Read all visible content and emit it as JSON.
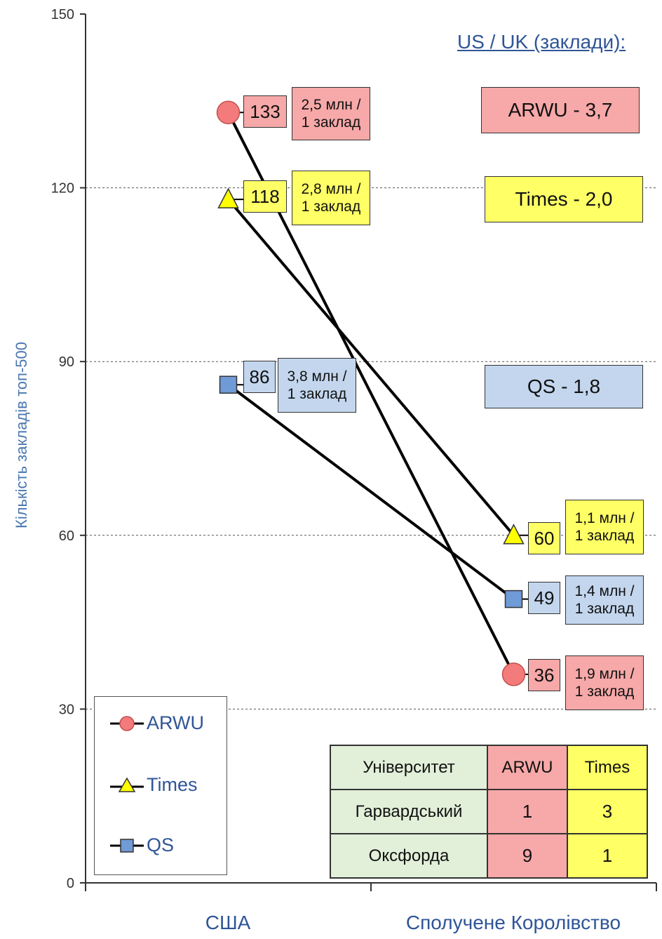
{
  "chart_data": {
    "type": "line",
    "categories": [
      "США",
      "Сполучене Королівство"
    ],
    "ylabel": "Кількість закладів топ-500",
    "ylim": [
      0,
      150
    ],
    "yticks": [
      0,
      30,
      60,
      90,
      120,
      150
    ],
    "grid": true,
    "series": [
      {
        "name": "ARWU",
        "values": [
          133,
          36
        ],
        "color": "#f47b7b",
        "marker": "circle",
        "notes": [
          "2,5 млн / 1 заклад",
          "1,9 млн / 1 заклад"
        ]
      },
      {
        "name": "Times",
        "values": [
          118,
          60
        ],
        "color": "#ffff00",
        "marker": "triangle",
        "notes": [
          "2,8 млн / 1 заклад",
          "1,1 млн / 1 заклад"
        ]
      },
      {
        "name": "QS",
        "values": [
          86,
          49
        ],
        "color": "#6f9bd6",
        "marker": "square",
        "notes": [
          "3,8 млн / 1 заклад",
          "1,4 млн / 1 заклад"
        ]
      }
    ],
    "legend_position": "bottom-left"
  },
  "notes": {
    "arwu_us": [
      "2,5 млн /",
      "1 заклад"
    ],
    "times_us": [
      "2,8 млн /",
      "1 заклад"
    ],
    "qs_us": [
      "3,8 млн /",
      "1 заклад"
    ],
    "times_uk": [
      "1,1 млн /",
      "1 заклад"
    ],
    "qs_uk": [
      "1,4 млн /",
      "1 заклад"
    ],
    "arwu_uk": [
      "1,9 млн /",
      "1 заклад"
    ]
  },
  "ratio_panel": {
    "heading": "US / UK (заклади):",
    "arwu": "ARWU - 3,7",
    "times": "Times - 2,0",
    "qs": "QS - 1,8"
  },
  "table": {
    "headers": [
      "Університет",
      "ARWU",
      "Times"
    ],
    "rows": [
      [
        "Гарвардський",
        "1",
        "3"
      ],
      [
        "Оксфорда",
        "9",
        "1"
      ]
    ]
  },
  "colors": {
    "pink_fill": "#f7a8a8",
    "yellow_fill": "#ffff66",
    "blue_fill": "#c3d6ee",
    "green_fill": "#e2efd9",
    "axis_text": "#2f5597"
  }
}
